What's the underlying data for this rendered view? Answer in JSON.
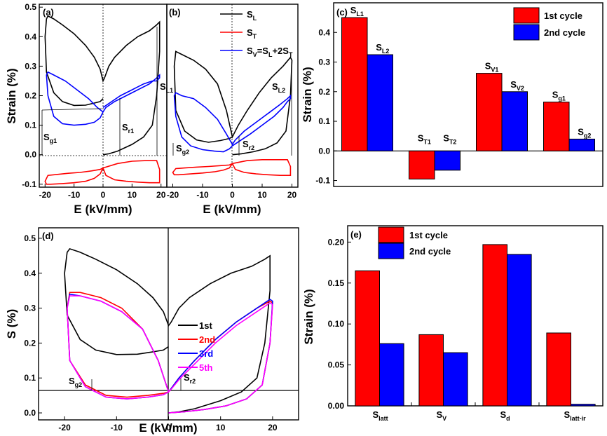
{
  "panels": {
    "a": {
      "label": "(a)",
      "xlabel": "E (kV/mm)",
      "ylabel": "Strain (%)",
      "xlim": [
        -22,
        22
      ],
      "ylim": [
        -0.11,
        0.51
      ],
      "xticks": [
        -20,
        -10,
        0,
        10,
        20
      ],
      "yticks": [
        -0.1,
        0.0,
        0.1,
        0.2,
        0.3,
        0.4,
        0.5
      ],
      "ytick_labels": [
        "-0.1",
        "0.0",
        "0.1",
        "0.2",
        "0.3",
        "0.4",
        "0.5"
      ],
      "xtick_labels": [
        "-20",
        "-10",
        "0",
        "10",
        "20"
      ],
      "annotations": [
        {
          "main": "S",
          "sub": "L1"
        },
        {
          "main": "S",
          "sub": "r1"
        },
        {
          "main": "S",
          "sub": "g1"
        }
      ]
    },
    "b": {
      "label": "(b)",
      "xlabel": "E (kV/mm)",
      "xlim": [
        -22,
        22
      ],
      "ylim": [
        -0.11,
        0.51
      ],
      "xticks": [
        -20,
        -10,
        0,
        10,
        20
      ],
      "xtick_labels": [
        "-20",
        "-10",
        "0",
        "10",
        "20"
      ],
      "legend": [
        {
          "main": "S",
          "sub": "L",
          "color": "#000000"
        },
        {
          "main": "S",
          "sub": "T",
          "color": "#ff0000"
        },
        {
          "main": "S",
          "sub": "V",
          "tail": "=S",
          "tail_sub": "L",
          "tail2": "+2S",
          "tail2_sub": "T",
          "color": "#0000ff"
        }
      ],
      "annotations": [
        {
          "main": "S",
          "sub": "L2"
        },
        {
          "main": "S",
          "sub": "r2"
        },
        {
          "main": "S",
          "sub": "g2"
        }
      ]
    },
    "c": {
      "label": "(c)",
      "ylabel": "Strain (%)",
      "legend": [
        "1st cycle",
        "2nd cycle"
      ]
    },
    "d": {
      "label": "(d)",
      "xlabel": "E (kV/mm)",
      "ylabel": "S (%)",
      "legend": [
        {
          "label": "1st",
          "color": "#000000"
        },
        {
          "label": "2nd",
          "color": "#ff0000"
        },
        {
          "label": "3rd",
          "color": "#0000ff"
        },
        {
          "label": "5th",
          "color": "#ff00ff"
        }
      ],
      "annotations": [
        {
          "main": "S",
          "sub": "g2"
        },
        {
          "main": "S",
          "sub": "r2"
        }
      ]
    },
    "e": {
      "label": "(e)",
      "ylabel": "Strain (%)",
      "legend": [
        "1st cycle",
        "2nd cycle"
      ]
    }
  },
  "colors": {
    "first": "#ff0000",
    "second": "#0000ff",
    "black": "#000000",
    "magenta": "#ff00ff"
  },
  "chart_data": [
    {
      "panel": "a",
      "type": "line",
      "title": "",
      "xlabel": "E (kV/mm)",
      "ylabel": "Strain (%)",
      "xlim": [
        -22,
        22
      ],
      "ylim": [
        -0.11,
        0.51
      ],
      "series": [
        {
          "name": "S_L",
          "color": "#000000",
          "x": [
            0,
            2,
            5,
            10,
            14,
            17,
            18.5,
            19.5,
            19.5,
            18.5,
            16,
            12,
            8,
            4,
            2,
            0.5,
            0,
            -1,
            -3,
            -6,
            -10,
            -14,
            -17,
            -19,
            -19.5,
            -20,
            -19.5,
            -17,
            -14,
            -10,
            -6,
            -3,
            -1,
            0
          ],
          "y": [
            0.0,
            0.003,
            0.012,
            0.035,
            0.06,
            0.1,
            0.2,
            0.35,
            0.45,
            0.44,
            0.42,
            0.4,
            0.37,
            0.33,
            0.3,
            0.26,
            0.25,
            0.29,
            0.33,
            0.37,
            0.41,
            0.44,
            0.46,
            0.47,
            0.46,
            0.4,
            0.28,
            0.21,
            0.18,
            0.167,
            0.168,
            0.175,
            0.18,
            0.19
          ]
        },
        {
          "name": "S_T",
          "color": "#ff0000",
          "x": [
            0,
            5,
            10,
            15,
            18.5,
            19.5,
            19.5,
            16,
            12,
            8,
            4,
            1,
            0,
            -1,
            -4,
            -8,
            -12,
            -16,
            -19,
            -20,
            -19.5,
            -18,
            -14,
            -10,
            -6,
            -3,
            -1,
            0
          ],
          "y": [
            -0.045,
            -0.03,
            -0.022,
            -0.02,
            -0.02,
            -0.05,
            -0.095,
            -0.095,
            -0.093,
            -0.09,
            -0.085,
            -0.07,
            -0.045,
            -0.05,
            -0.055,
            -0.06,
            -0.063,
            -0.067,
            -0.07,
            -0.09,
            -0.1,
            -0.1,
            -0.098,
            -0.095,
            -0.09,
            -0.08,
            -0.065,
            -0.045
          ]
        },
        {
          "name": "S_V",
          "color": "#0000ff",
          "x": [
            0,
            3,
            6,
            10,
            14,
            17,
            18.5,
            19.5,
            19.5,
            18.5,
            16,
            12,
            8,
            4,
            1,
            0,
            -2,
            -5,
            -9,
            -13,
            -17,
            -19,
            -19.5,
            -19,
            -17,
            -14,
            -10,
            -6,
            -3,
            -1,
            0
          ],
          "y": [
            0.16,
            0.18,
            0.2,
            0.22,
            0.24,
            0.25,
            0.25,
            0.26,
            0.27,
            0.26,
            0.24,
            0.22,
            0.2,
            0.18,
            0.16,
            0.145,
            0.16,
            0.19,
            0.22,
            0.25,
            0.27,
            0.28,
            0.27,
            0.2,
            0.13,
            0.105,
            0.1,
            0.103,
            0.11,
            0.125,
            0.145
          ]
        }
      ],
      "annotations": [
        "S_L1",
        "S_r1",
        "S_g1"
      ]
    },
    {
      "panel": "b",
      "type": "line",
      "xlabel": "E (kV/mm)",
      "xlim": [
        -22,
        22
      ],
      "ylim": [
        -0.11,
        0.51
      ],
      "series": [
        {
          "name": "S_L",
          "color": "#000000",
          "x": [
            0,
            3,
            7,
            11,
            15,
            18,
            19.5,
            20,
            19.5,
            17,
            13,
            9,
            5,
            2,
            0.5,
            0,
            -2,
            -5,
            -9,
            -13,
            -17,
            -19,
            -19.5,
            -19,
            -16,
            -12,
            -8,
            -4,
            -1,
            0
          ],
          "y": [
            0.0,
            0.003,
            0.01,
            0.02,
            0.04,
            0.08,
            0.2,
            0.32,
            0.33,
            0.3,
            0.26,
            0.21,
            0.15,
            0.1,
            0.07,
            0.06,
            0.15,
            0.24,
            0.29,
            0.32,
            0.34,
            0.35,
            0.3,
            0.15,
            0.08,
            0.05,
            0.042,
            0.048,
            0.055,
            0.06
          ]
        },
        {
          "name": "S_T",
          "color": "#ff0000",
          "x": [
            0,
            5,
            10,
            15,
            18.5,
            19.5,
            19.5,
            16,
            12,
            8,
            4,
            1,
            0,
            -1,
            -4,
            -8,
            -12,
            -16,
            -19,
            -20,
            -19.5,
            -18,
            -14,
            -10,
            -6,
            -3,
            -1,
            0
          ],
          "y": [
            -0.03,
            -0.02,
            -0.017,
            -0.017,
            -0.017,
            -0.04,
            -0.07,
            -0.07,
            -0.068,
            -0.065,
            -0.06,
            -0.05,
            -0.03,
            -0.035,
            -0.037,
            -0.04,
            -0.042,
            -0.045,
            -0.047,
            -0.06,
            -0.068,
            -0.068,
            -0.065,
            -0.062,
            -0.058,
            -0.052,
            -0.045,
            -0.03
          ]
        },
        {
          "name": "S_V",
          "color": "#0000ff",
          "x": [
            0,
            3,
            6,
            10,
            14,
            17,
            18.5,
            19.5,
            19.5,
            18.5,
            16,
            12,
            8,
            4,
            1,
            0,
            -2,
            -5,
            -9,
            -13,
            -17,
            -19,
            -19.5,
            -19,
            -17,
            -14,
            -10,
            -6,
            -3,
            -1,
            0
          ],
          "y": [
            0.03,
            0.05,
            0.07,
            0.1,
            0.13,
            0.16,
            0.18,
            0.19,
            0.2,
            0.19,
            0.17,
            0.14,
            0.11,
            0.08,
            0.05,
            0.035,
            0.07,
            0.12,
            0.16,
            0.19,
            0.2,
            0.21,
            0.2,
            0.13,
            0.06,
            0.03,
            0.017,
            0.012,
            0.01,
            0.02,
            0.03
          ]
        }
      ],
      "annotations": [
        "S_L2",
        "S_r2",
        "S_g2"
      ]
    },
    {
      "panel": "c",
      "type": "bar",
      "ylabel": "Strain (%)",
      "ylim": [
        -0.12,
        0.5
      ],
      "yticks": [
        -0.1,
        0.0,
        0.1,
        0.2,
        0.3,
        0.4
      ],
      "ytick_labels": [
        "-0.1",
        "0.0",
        "0.1",
        "0.2",
        "0.3",
        "0.4"
      ],
      "categories": [
        "S_L",
        "S_T",
        "S_V",
        "S_g"
      ],
      "category_labels": [
        [
          "S",
          "L1",
          "S",
          "L2"
        ],
        [
          "S",
          "T1",
          "S",
          "T2"
        ],
        [
          "S",
          "V1",
          "S",
          "V2"
        ],
        [
          "S",
          "g1",
          "S",
          "g2"
        ]
      ],
      "series": [
        {
          "name": "1st cycle",
          "color": "#ff0000",
          "values": [
            0.45,
            -0.095,
            0.262,
            0.165
          ]
        },
        {
          "name": "2nd cycle",
          "color": "#0000ff",
          "values": [
            0.325,
            -0.065,
            0.2,
            0.04
          ]
        }
      ]
    },
    {
      "panel": "d",
      "type": "line",
      "xlabel": "E (kV/mm)",
      "ylabel": "S (%)",
      "xlim": [
        -25,
        25
      ],
      "ylim": [
        -0.02,
        0.53
      ],
      "xticks": [
        -20,
        -10,
        0,
        10,
        20
      ],
      "xtick_labels": [
        "-20",
        "-10",
        "0",
        "10",
        "20"
      ],
      "yticks": [
        0.0,
        0.1,
        0.2,
        0.3,
        0.4,
        0.5
      ],
      "ytick_labels": [
        "0.0",
        "0.1",
        "0.2",
        "0.3",
        "0.4",
        "0.5"
      ],
      "series": [
        {
          "name": "1st",
          "color": "#000000",
          "x": [
            0,
            2,
            5,
            10,
            14,
            17,
            18.5,
            19.5,
            19.5,
            18.5,
            16,
            12,
            8,
            4,
            2,
            0.5,
            0,
            -1,
            -3,
            -6,
            -10,
            -14,
            -17,
            -19,
            -19.5,
            -20,
            -19.5,
            -17,
            -14,
            -10,
            -6,
            -3,
            -1,
            0
          ],
          "y": [
            0.0,
            0.003,
            0.012,
            0.035,
            0.06,
            0.1,
            0.2,
            0.35,
            0.45,
            0.44,
            0.42,
            0.4,
            0.37,
            0.33,
            0.3,
            0.26,
            0.25,
            0.29,
            0.33,
            0.37,
            0.41,
            0.44,
            0.46,
            0.47,
            0.46,
            0.4,
            0.28,
            0.21,
            0.18,
            0.167,
            0.168,
            0.175,
            0.18,
            0.19
          ]
        },
        {
          "name": "2nd",
          "color": "#ff0000",
          "x": [
            0,
            3,
            7,
            11,
            15,
            18,
            19.5,
            20,
            19.5,
            17,
            13,
            9,
            5,
            2,
            0.5,
            0,
            -2,
            -5,
            -9,
            -13,
            -17,
            -19,
            -19.5,
            -19,
            -16,
            -12,
            -8,
            -4,
            -1,
            0
          ],
          "y": [
            0.0,
            0.003,
            0.01,
            0.02,
            0.04,
            0.08,
            0.2,
            0.315,
            0.32,
            0.3,
            0.26,
            0.21,
            0.15,
            0.1,
            0.07,
            0.06,
            0.15,
            0.24,
            0.3,
            0.33,
            0.345,
            0.345,
            0.3,
            0.15,
            0.08,
            0.05,
            0.045,
            0.05,
            0.056,
            0.06
          ]
        },
        {
          "name": "3rd",
          "color": "#0000ff",
          "x": [
            0,
            3,
            7,
            11,
            15,
            18,
            19.5,
            20,
            19.5,
            17,
            13,
            9,
            5,
            2,
            0.5,
            0,
            -2,
            -5,
            -9,
            -13,
            -17,
            -19,
            -19.5,
            -19,
            -16,
            -12,
            -8,
            -4,
            -1,
            0
          ],
          "y": [
            0.0,
            0.003,
            0.01,
            0.02,
            0.04,
            0.08,
            0.2,
            0.32,
            0.325,
            0.3,
            0.26,
            0.21,
            0.15,
            0.1,
            0.07,
            0.06,
            0.15,
            0.24,
            0.29,
            0.32,
            0.335,
            0.34,
            0.3,
            0.15,
            0.075,
            0.045,
            0.04,
            0.045,
            0.052,
            0.06
          ]
        },
        {
          "name": "5th",
          "color": "#ff00ff",
          "x": [
            0,
            3,
            7,
            11,
            15,
            18,
            19.5,
            20,
            19.5,
            17,
            13,
            9,
            5,
            2,
            0.5,
            0,
            -2,
            -5,
            -9,
            -13,
            -17,
            -19,
            -19.5,
            -19,
            -16,
            -12,
            -8,
            -4,
            -1,
            0
          ],
          "y": [
            0.0,
            0.003,
            0.01,
            0.02,
            0.04,
            0.08,
            0.2,
            0.31,
            0.315,
            0.29,
            0.25,
            0.2,
            0.14,
            0.095,
            0.068,
            0.06,
            0.15,
            0.24,
            0.29,
            0.32,
            0.335,
            0.335,
            0.3,
            0.15,
            0.075,
            0.045,
            0.04,
            0.045,
            0.052,
            0.06
          ]
        }
      ],
      "annotations": [
        "S_g2",
        "S_r2"
      ]
    },
    {
      "panel": "e",
      "type": "bar",
      "ylabel": "Strain (%)",
      "ylim": [
        0.0,
        0.22
      ],
      "yticks": [
        0.0,
        0.05,
        0.1,
        0.15,
        0.2
      ],
      "ytick_labels": [
        "0.00",
        "0.05",
        "0.10",
        "0.15",
        "0.20"
      ],
      "categories": [
        "S_latt",
        "S_V",
        "S_d",
        "S_latt-ir"
      ],
      "category_labels": [
        [
          "S",
          "latt"
        ],
        [
          "S",
          "V"
        ],
        [
          "S",
          "d"
        ],
        [
          "S",
          "latt-ir"
        ]
      ],
      "series": [
        {
          "name": "1st cycle",
          "color": "#ff0000",
          "values": [
            0.165,
            0.087,
            0.197,
            0.089
          ]
        },
        {
          "name": "2nd cycle",
          "color": "#0000ff",
          "values": [
            0.076,
            0.065,
            0.185,
            0.002
          ]
        }
      ]
    }
  ]
}
